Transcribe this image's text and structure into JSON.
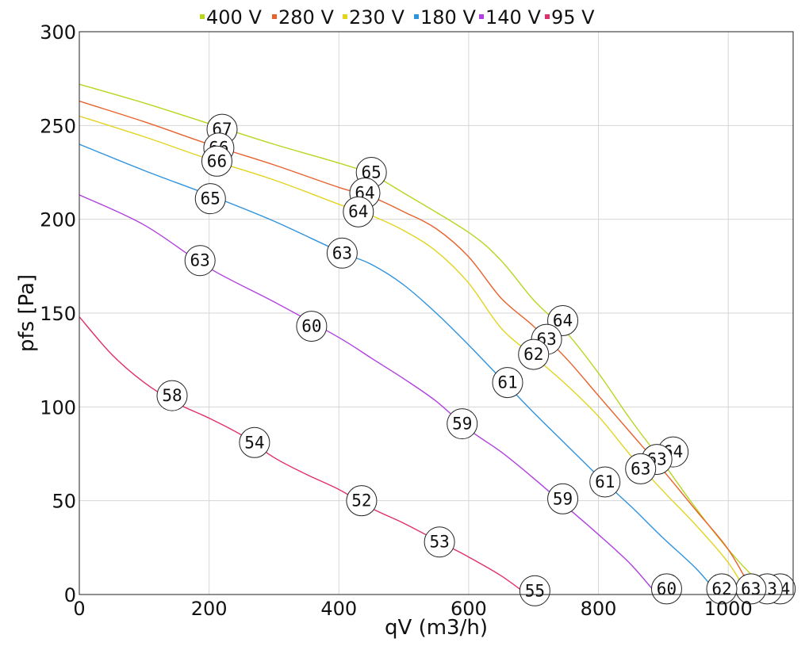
{
  "chart_data": {
    "type": "line",
    "xlabel": "qV (m3/h)",
    "ylabel": "pfs [Pa]",
    "xlim": [
      0,
      1100
    ],
    "ylim": [
      0,
      300
    ],
    "xticks": [
      0,
      200,
      400,
      600,
      800,
      1000
    ],
    "yticks": [
      0,
      50,
      100,
      150,
      200,
      250,
      300
    ],
    "xtick_labels": [
      "0",
      "200",
      "400",
      "600",
      "800",
      "1000"
    ],
    "ytick_labels": [
      "0",
      "50",
      "100",
      "150",
      "200",
      "250",
      "300"
    ],
    "grid": true,
    "legend_position": "top",
    "series": [
      {
        "name": "400 V",
        "color": "#b9d61e",
        "points": [
          [
            0,
            272
          ],
          [
            100,
            262
          ],
          [
            200,
            251
          ],
          [
            300,
            240
          ],
          [
            400,
            230
          ],
          [
            450,
            224
          ],
          [
            500,
            214
          ],
          [
            600,
            193
          ],
          [
            650,
            178
          ],
          [
            700,
            157
          ],
          [
            750,
            140
          ],
          [
            800,
            118
          ],
          [
            850,
            93
          ],
          [
            900,
            70
          ],
          [
            950,
            46
          ],
          [
            1000,
            24
          ],
          [
            1050,
            6
          ],
          [
            1085,
            0
          ]
        ],
        "labels": [
          {
            "x": 220,
            "y": 248,
            "text": "67"
          },
          {
            "x": 450,
            "y": 225,
            "text": "65"
          },
          {
            "x": 745,
            "y": 146,
            "text": "64"
          },
          {
            "x": 915,
            "y": 76,
            "text": "64"
          },
          {
            "x": 1080,
            "y": 3,
            "text": "64"
          }
        ]
      },
      {
        "name": "280 V",
        "color": "#e8622c",
        "points": [
          [
            0,
            263
          ],
          [
            100,
            252
          ],
          [
            200,
            240
          ],
          [
            300,
            229
          ],
          [
            400,
            217
          ],
          [
            450,
            212
          ],
          [
            500,
            204
          ],
          [
            550,
            195
          ],
          [
            600,
            180
          ],
          [
            650,
            158
          ],
          [
            700,
            143
          ],
          [
            750,
            126
          ],
          [
            800,
            106
          ],
          [
            850,
            86
          ],
          [
            900,
            66
          ],
          [
            950,
            45
          ],
          [
            1000,
            24
          ],
          [
            1040,
            0
          ]
        ],
        "labels": [
          {
            "x": 215,
            "y": 238,
            "text": "66"
          },
          {
            "x": 440,
            "y": 214,
            "text": "64"
          },
          {
            "x": 720,
            "y": 136,
            "text": "63"
          },
          {
            "x": 890,
            "y": 72,
            "text": "63"
          },
          {
            "x": 1060,
            "y": 3,
            "text": "63"
          }
        ]
      },
      {
        "name": "230 V",
        "color": "#e3d420",
        "points": [
          [
            0,
            255
          ],
          [
            100,
            244
          ],
          [
            200,
            232
          ],
          [
            300,
            221
          ],
          [
            400,
            208
          ],
          [
            450,
            202
          ],
          [
            500,
            194
          ],
          [
            550,
            183
          ],
          [
            600,
            166
          ],
          [
            650,
            142
          ],
          [
            700,
            127
          ],
          [
            750,
            112
          ],
          [
            800,
            95
          ],
          [
            850,
            74
          ],
          [
            900,
            55
          ],
          [
            950,
            37
          ],
          [
            1000,
            17
          ],
          [
            1030,
            0
          ]
        ],
        "labels": [
          {
            "x": 212,
            "y": 231,
            "text": "66"
          },
          {
            "x": 430,
            "y": 204,
            "text": "64"
          },
          {
            "x": 700,
            "y": 128,
            "text": "62"
          },
          {
            "x": 865,
            "y": 67,
            "text": "63"
          },
          {
            "x": 1035,
            "y": 3,
            "text": "63"
          }
        ]
      },
      {
        "name": "180 V",
        "color": "#2f93de",
        "points": [
          [
            0,
            240
          ],
          [
            100,
            226
          ],
          [
            200,
            213
          ],
          [
            300,
            199
          ],
          [
            400,
            183
          ],
          [
            450,
            176
          ],
          [
            500,
            165
          ],
          [
            550,
            150
          ],
          [
            600,
            133
          ],
          [
            650,
            115
          ],
          [
            700,
            97
          ],
          [
            750,
            80
          ],
          [
            800,
            63
          ],
          [
            850,
            47
          ],
          [
            900,
            30
          ],
          [
            950,
            14
          ],
          [
            985,
            0
          ]
        ],
        "labels": [
          {
            "x": 202,
            "y": 211,
            "text": "65"
          },
          {
            "x": 405,
            "y": 182,
            "text": "63"
          },
          {
            "x": 660,
            "y": 113,
            "text": "61"
          },
          {
            "x": 810,
            "y": 60,
            "text": "61"
          },
          {
            "x": 990,
            "y": 3,
            "text": "62"
          }
        ]
      },
      {
        "name": "140 V",
        "color": "#b040e0",
        "points": [
          [
            0,
            213
          ],
          [
            100,
            197
          ],
          [
            200,
            174
          ],
          [
            300,
            156
          ],
          [
            400,
            137
          ],
          [
            450,
            126
          ],
          [
            500,
            115
          ],
          [
            550,
            103
          ],
          [
            600,
            88
          ],
          [
            650,
            76
          ],
          [
            700,
            62
          ],
          [
            750,
            47
          ],
          [
            800,
            32
          ],
          [
            850,
            16
          ],
          [
            890,
            0
          ]
        ],
        "labels": [
          {
            "x": 186,
            "y": 178,
            "text": "63"
          },
          {
            "x": 358,
            "y": 143,
            "text": "60"
          },
          {
            "x": 590,
            "y": 91,
            "text": "59"
          },
          {
            "x": 745,
            "y": 51,
            "text": "59"
          },
          {
            "x": 905,
            "y": 3,
            "text": "60"
          }
        ]
      },
      {
        "name": "95 V",
        "color": "#e0306a",
        "points": [
          [
            0,
            148
          ],
          [
            50,
            128
          ],
          [
            100,
            113
          ],
          [
            150,
            102
          ],
          [
            200,
            94
          ],
          [
            250,
            85
          ],
          [
            300,
            73
          ],
          [
            350,
            64
          ],
          [
            400,
            56
          ],
          [
            450,
            46
          ],
          [
            500,
            38
          ],
          [
            550,
            29
          ],
          [
            600,
            20
          ],
          [
            650,
            10
          ],
          [
            690,
            0
          ]
        ],
        "labels": [
          {
            "x": 143,
            "y": 106,
            "text": "58"
          },
          {
            "x": 270,
            "y": 81,
            "text": "54"
          },
          {
            "x": 435,
            "y": 50,
            "text": "52"
          },
          {
            "x": 555,
            "y": 28,
            "text": "53"
          },
          {
            "x": 702,
            "y": 2,
            "text": "55"
          }
        ]
      }
    ]
  }
}
